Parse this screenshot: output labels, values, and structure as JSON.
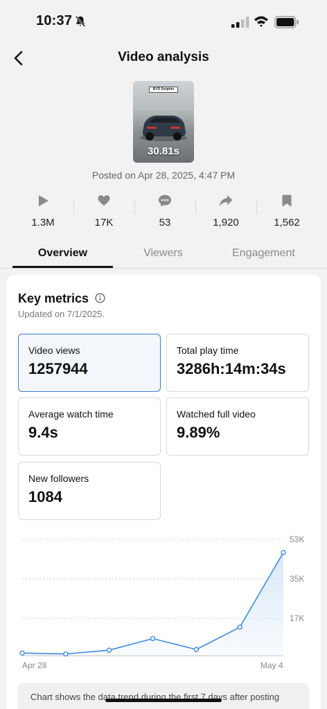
{
  "status_bar": {
    "time": "10:37",
    "icons": [
      "bell-slash-icon",
      "signal-icon",
      "wifi-icon",
      "battery-icon"
    ]
  },
  "header": {
    "title": "Video analysis",
    "back_icon": "chevron-left-icon"
  },
  "video": {
    "sign_text": "BYD Dolphin",
    "duration": "30.81s",
    "posted": "Posted on Apr 28, 2025, 4:47 PM"
  },
  "stats": [
    {
      "icon": "play-icon",
      "value": "1.3M"
    },
    {
      "icon": "heart-icon",
      "value": "17K"
    },
    {
      "icon": "comment-icon",
      "value": "53"
    },
    {
      "icon": "share-icon",
      "value": "1,920"
    },
    {
      "icon": "bookmark-icon",
      "value": "1,562"
    }
  ],
  "tabs": [
    {
      "label": "Overview",
      "active": true
    },
    {
      "label": "Viewers",
      "active": false
    },
    {
      "label": "Engagement",
      "active": false
    }
  ],
  "key_metrics": {
    "title": "Key metrics",
    "updated": "Updated on 7/1/2025.",
    "items": [
      {
        "label": "Video views",
        "value": "1257944",
        "selected": true
      },
      {
        "label": "Total play time",
        "value": "3286h:14m:34s",
        "selected": false
      },
      {
        "label": "Average watch time",
        "value": "9.4s",
        "selected": false
      },
      {
        "label": "Watched full video",
        "value": "9.89%",
        "selected": false
      },
      {
        "label": "New followers",
        "value": "1084",
        "selected": false
      }
    ]
  },
  "chart_data": {
    "type": "line",
    "x_tick_labels": [
      "Apr 28",
      "May 4"
    ],
    "y_tick_labels": [
      "53K",
      "35K",
      "17K"
    ],
    "y_ticks": [
      53000,
      35000,
      17000
    ],
    "ylim": [
      0,
      53000
    ],
    "x": [
      "Apr 28",
      "Apr 29",
      "Apr 30",
      "May 1",
      "May 2",
      "May 3",
      "May 4"
    ],
    "values": [
      1200,
      800,
      2500,
      7800,
      2800,
      13000,
      47000
    ],
    "grid": true,
    "line_color": "#3b8be0",
    "fill_color": "#d6e7f8"
  },
  "note": "Chart shows the data trend during the first 7 days after posting"
}
